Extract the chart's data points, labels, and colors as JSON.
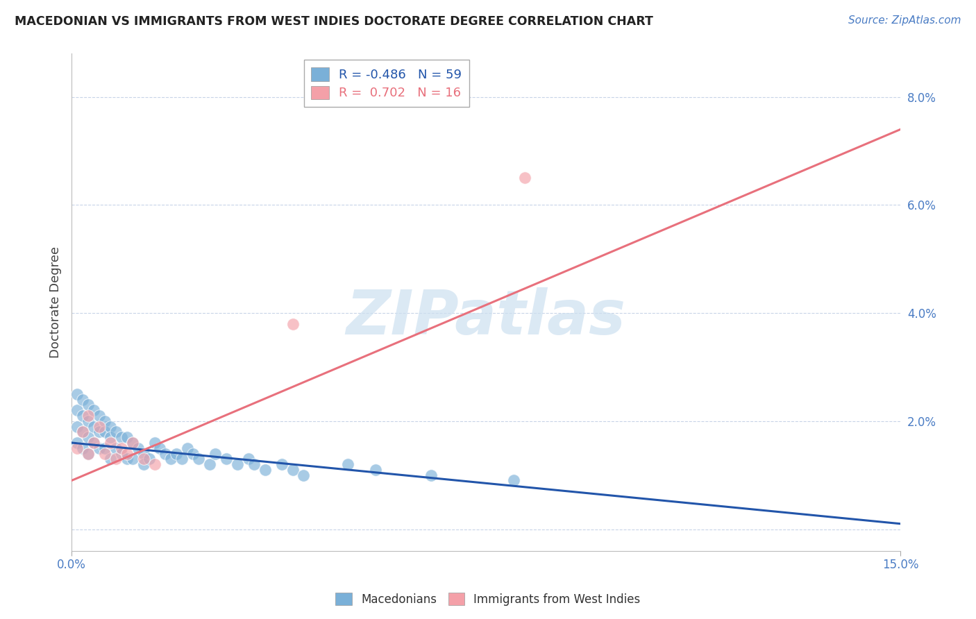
{
  "title": "MACEDONIAN VS IMMIGRANTS FROM WEST INDIES DOCTORATE DEGREE CORRELATION CHART",
  "source": "Source: ZipAtlas.com",
  "ylabel": "Doctorate Degree",
  "xmin": 0.0,
  "xmax": 0.15,
  "ymin": -0.004,
  "ymax": 0.088,
  "macedonian_color": "#7ab0d8",
  "west_indies_color": "#f4a0a8",
  "macedonian_line_color": "#2255aa",
  "west_indies_line_color": "#e8707c",
  "watermark_text": "ZIPatlas",
  "watermark_color": "#cde0f0",
  "background_color": "#ffffff",
  "grid_color": "#c8d4e8",
  "mac_R": -0.486,
  "mac_N": 59,
  "wi_R": 0.702,
  "wi_N": 16,
  "mac_line_x0": 0.0,
  "mac_line_y0": 0.016,
  "mac_line_x1": 0.15,
  "mac_line_y1": 0.001,
  "wi_line_x0": 0.0,
  "wi_line_y0": 0.009,
  "wi_line_x1": 0.15,
  "wi_line_y1": 0.074,
  "mac_scatter_x": [
    0.001,
    0.001,
    0.001,
    0.001,
    0.002,
    0.002,
    0.002,
    0.002,
    0.003,
    0.003,
    0.003,
    0.003,
    0.004,
    0.004,
    0.004,
    0.005,
    0.005,
    0.005,
    0.006,
    0.006,
    0.006,
    0.007,
    0.007,
    0.007,
    0.008,
    0.008,
    0.009,
    0.009,
    0.01,
    0.01,
    0.011,
    0.011,
    0.012,
    0.013,
    0.013,
    0.014,
    0.015,
    0.016,
    0.017,
    0.018,
    0.019,
    0.02,
    0.021,
    0.022,
    0.023,
    0.025,
    0.026,
    0.028,
    0.03,
    0.032,
    0.033,
    0.035,
    0.038,
    0.04,
    0.042,
    0.05,
    0.055,
    0.065,
    0.08
  ],
  "mac_scatter_y": [
    0.025,
    0.022,
    0.019,
    0.016,
    0.024,
    0.021,
    0.018,
    0.015,
    0.023,
    0.02,
    0.017,
    0.014,
    0.022,
    0.019,
    0.016,
    0.021,
    0.018,
    0.015,
    0.02,
    0.018,
    0.015,
    0.019,
    0.017,
    0.013,
    0.018,
    0.015,
    0.017,
    0.014,
    0.017,
    0.013,
    0.016,
    0.013,
    0.015,
    0.014,
    0.012,
    0.013,
    0.016,
    0.015,
    0.014,
    0.013,
    0.014,
    0.013,
    0.015,
    0.014,
    0.013,
    0.012,
    0.014,
    0.013,
    0.012,
    0.013,
    0.012,
    0.011,
    0.012,
    0.011,
    0.01,
    0.012,
    0.011,
    0.01,
    0.009
  ],
  "wi_scatter_x": [
    0.001,
    0.002,
    0.003,
    0.003,
    0.004,
    0.005,
    0.006,
    0.007,
    0.008,
    0.009,
    0.01,
    0.011,
    0.013,
    0.015,
    0.082,
    0.04
  ],
  "wi_scatter_y": [
    0.015,
    0.018,
    0.014,
    0.021,
    0.016,
    0.019,
    0.014,
    0.016,
    0.013,
    0.015,
    0.014,
    0.016,
    0.013,
    0.012,
    0.065,
    0.038
  ]
}
